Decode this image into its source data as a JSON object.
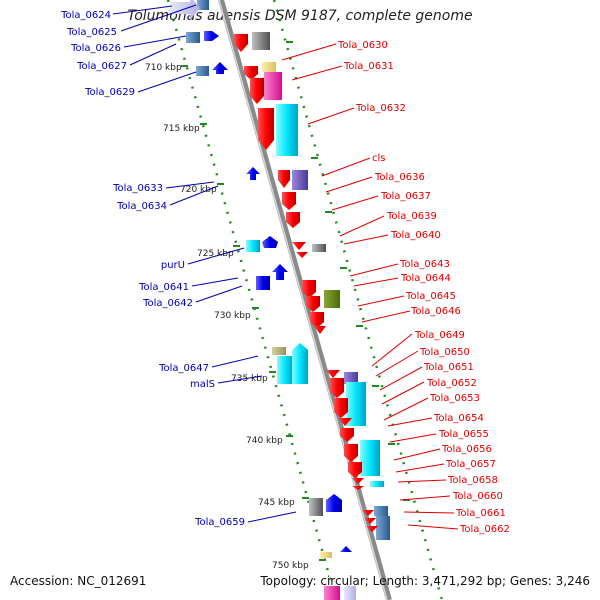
{
  "title": "Tolumonas auensis DSM 9187, complete genome",
  "footer": {
    "accession": "Accession: NC_012691",
    "summary": "Topology: circular; Length: 3,471,292 bp; Genes: 3,246"
  },
  "colors": {
    "forward_label": "#0000aa",
    "reverse_label": "#dd0000",
    "backbone": "#888888",
    "tick": "#228822"
  },
  "kbp_ticks": [
    "710 kbp",
    "715 kbp",
    "720 kbp",
    "725 kbp",
    "730 kbp",
    "735 kbp",
    "740 kbp",
    "745 kbp",
    "750 kbp"
  ],
  "forward_labels": [
    "Tola_0624",
    "Tola_0625",
    "Tola_0626",
    "Tola_0627",
    "Tola_0629",
    "Tola_0633",
    "Tola_0634",
    "purU",
    "Tola_0641",
    "Tola_0642",
    "Tola_0647",
    "malS",
    "Tola_0659"
  ],
  "reverse_labels": [
    "Tola_0630",
    "Tola_0631",
    "Tola_0632",
    "cls",
    "Tola_0636",
    "Tola_0637",
    "Tola_0639",
    "Tola_0640",
    "Tola_0643",
    "Tola_0644",
    "Tola_0645",
    "Tola_0646",
    "Tola_0649",
    "Tola_0650",
    "Tola_0651",
    "Tola_0652",
    "Tola_0653",
    "Tola_0654",
    "Tola_0655",
    "Tola_0656",
    "Tola_0657",
    "Tola_0658",
    "Tola_0660",
    "Tola_0661",
    "Tola_0662"
  ]
}
